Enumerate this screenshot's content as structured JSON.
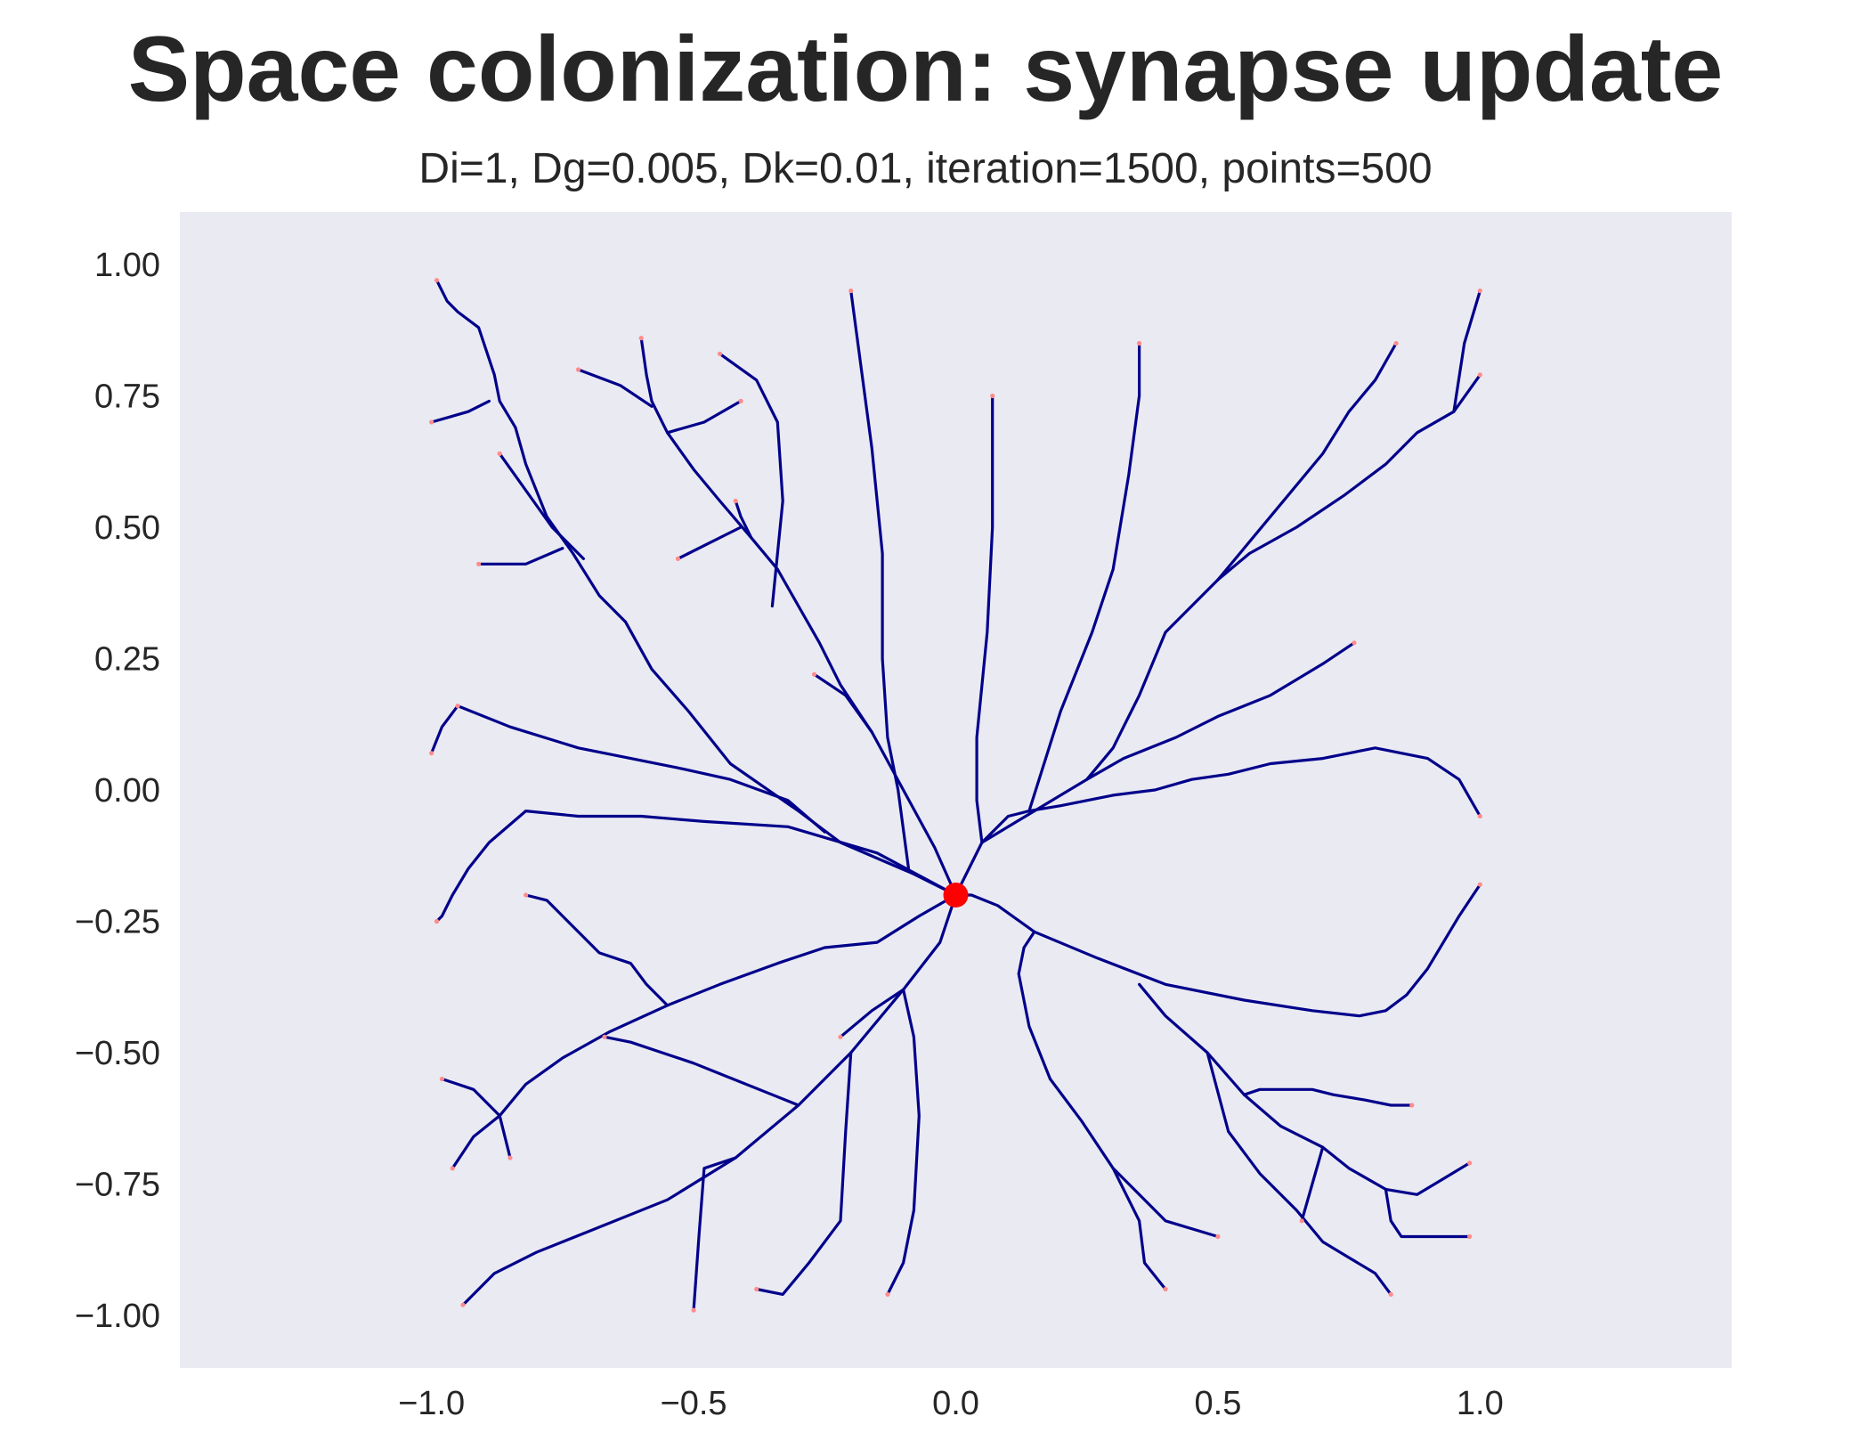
{
  "chart_data": {
    "type": "line",
    "title": "Space colonization: synapse update",
    "subtitle": "Di=1, Dg=0.005, Dk=0.01, iteration=1500, points=500",
    "xlabel": "",
    "ylabel": "",
    "xlim": [
      -1.48,
      1.48
    ],
    "ylim": [
      -1.1,
      1.1
    ],
    "x_ticks": [
      -1.0,
      -0.5,
      0.0,
      0.5,
      1.0
    ],
    "x_tick_labels": [
      "−1.0",
      "−0.5",
      "0.0",
      "0.5",
      "1.0"
    ],
    "y_ticks": [
      1.0,
      0.75,
      0.5,
      0.25,
      0.0,
      -0.25,
      -0.5,
      -0.75,
      -1.0
    ],
    "y_tick_labels": [
      "1.00",
      "0.75",
      "0.50",
      "0.25",
      "0.00",
      "−0.25",
      "−0.50",
      "−0.75",
      "−1.00"
    ],
    "grid": false,
    "colors": {
      "background": "#eaeaf2",
      "branch": "#00008b",
      "root": "#ff0000",
      "points": "#ff8c8c"
    },
    "root": {
      "x": 0.0,
      "y": -0.2
    },
    "series": [
      {
        "x": [
          0.0,
          -0.08,
          -0.22,
          -0.3,
          -0.43,
          -0.51,
          -0.58,
          -0.63,
          -0.68,
          -0.73,
          -0.78,
          -0.82,
          -0.84,
          -0.87,
          -0.88,
          -0.9,
          -0.91,
          -0.95,
          -0.97,
          -0.99
        ],
        "y": [
          -0.2,
          -0.16,
          -0.1,
          -0.04,
          0.05,
          0.15,
          0.23,
          0.32,
          0.37,
          0.45,
          0.52,
          0.62,
          0.69,
          0.74,
          0.79,
          0.85,
          0.88,
          0.91,
          0.93,
          0.97
        ]
      },
      {
        "x": [
          -0.71,
          -0.77,
          -0.87
        ],
        "y": [
          0.44,
          0.5,
          0.64
        ]
      },
      {
        "x": [
          -0.75,
          -0.82,
          -0.91
        ],
        "y": [
          0.46,
          0.43,
          0.43
        ]
      },
      {
        "x": [
          -0.89,
          -0.93,
          -1.0
        ],
        "y": [
          0.74,
          0.72,
          0.7
        ]
      },
      {
        "x": [
          0.0,
          -0.04,
          -0.1,
          -0.16,
          -0.22,
          -0.26,
          -0.3,
          -0.34,
          -0.39,
          -0.45,
          -0.5,
          -0.55,
          -0.58,
          -0.59,
          -0.6
        ],
        "y": [
          -0.2,
          -0.11,
          0.0,
          0.11,
          0.2,
          0.28,
          0.35,
          0.42,
          0.48,
          0.55,
          0.61,
          0.68,
          0.74,
          0.79,
          0.86
        ]
      },
      {
        "x": [
          -0.58,
          -0.64,
          -0.72
        ],
        "y": [
          0.73,
          0.77,
          0.8
        ]
      },
      {
        "x": [
          -0.55,
          -0.48,
          -0.41
        ],
        "y": [
          0.68,
          0.7,
          0.74
        ]
      },
      {
        "x": [
          -0.39,
          -0.41,
          -0.42
        ],
        "y": [
          0.48,
          0.52,
          0.55
        ]
      },
      {
        "x": [
          -0.41,
          -0.47,
          -0.53
        ],
        "y": [
          0.5,
          0.47,
          0.44
        ]
      },
      {
        "x": [
          -0.16,
          -0.21,
          -0.27
        ],
        "y": [
          0.11,
          0.18,
          0.22
        ]
      },
      {
        "x": [
          0.0,
          -0.15,
          -0.32,
          -0.48,
          -0.6,
          -0.72,
          -0.82,
          -0.89,
          -0.93,
          -0.96,
          -0.98,
          -0.99
        ],
        "y": [
          -0.2,
          -0.12,
          -0.07,
          -0.06,
          -0.05,
          -0.05,
          -0.04,
          -0.1,
          -0.15,
          -0.2,
          -0.24,
          -0.25
        ]
      },
      {
        "x": [
          -0.25,
          -0.32,
          -0.43,
          -0.52,
          -0.62,
          -0.72,
          -0.85,
          -0.95
        ],
        "y": [
          -0.08,
          -0.02,
          0.02,
          0.04,
          0.06,
          0.08,
          0.12,
          0.16
        ]
      },
      {
        "x": [
          -0.95,
          -0.98,
          -1.0
        ],
        "y": [
          0.16,
          0.12,
          0.07
        ]
      },
      {
        "x": [
          0.0,
          -0.07,
          -0.15,
          -0.25,
          -0.34,
          -0.45,
          -0.55,
          -0.66,
          -0.75,
          -0.82,
          -0.87,
          -0.92,
          -0.96
        ],
        "y": [
          -0.2,
          -0.24,
          -0.29,
          -0.3,
          -0.33,
          -0.37,
          -0.41,
          -0.46,
          -0.51,
          -0.56,
          -0.62,
          -0.66,
          -0.72
        ]
      },
      {
        "x": [
          -0.55,
          -0.59,
          -0.62,
          -0.68,
          -0.72,
          -0.78,
          -0.82
        ],
        "y": [
          -0.41,
          -0.37,
          -0.33,
          -0.31,
          -0.27,
          -0.21,
          -0.2
        ]
      },
      {
        "x": [
          -0.87,
          -0.92,
          -0.98
        ],
        "y": [
          -0.62,
          -0.57,
          -0.55
        ]
      },
      {
        "x": [
          -0.87,
          -0.85
        ],
        "y": [
          -0.62,
          -0.7
        ]
      },
      {
        "x": [
          0.0,
          -0.03,
          -0.1,
          -0.2,
          -0.3,
          -0.42,
          -0.55,
          -0.7,
          -0.8,
          -0.88,
          -0.94
        ],
        "y": [
          -0.2,
          -0.29,
          -0.38,
          -0.5,
          -0.6,
          -0.7,
          -0.78,
          -0.84,
          -0.88,
          -0.92,
          -0.98
        ]
      },
      {
        "x": [
          -0.3,
          -0.35,
          -0.45,
          -0.5,
          -0.56,
          -0.62,
          -0.67
        ],
        "y": [
          -0.6,
          -0.58,
          -0.54,
          -0.52,
          -0.5,
          -0.48,
          -0.47
        ]
      },
      {
        "x": [
          -0.42,
          -0.48,
          -0.49,
          -0.5
        ],
        "y": [
          -0.7,
          -0.72,
          -0.85,
          -0.99
        ]
      },
      {
        "x": [
          -0.2,
          -0.21,
          -0.22,
          -0.28,
          -0.33,
          -0.38
        ],
        "y": [
          -0.5,
          -0.65,
          -0.82,
          -0.9,
          -0.96,
          -0.95
        ]
      },
      {
        "x": [
          -0.1,
          -0.08,
          -0.07,
          -0.08,
          -0.1,
          -0.13
        ],
        "y": [
          -0.38,
          -0.47,
          -0.62,
          -0.8,
          -0.9,
          -0.96
        ]
      },
      {
        "x": [
          -0.1,
          -0.16,
          -0.22
        ],
        "y": [
          -0.38,
          -0.42,
          -0.47
        ]
      },
      {
        "x": [
          0.0,
          0.03,
          0.08,
          0.15,
          0.27,
          0.4,
          0.55,
          0.68,
          0.77,
          0.82,
          0.86,
          0.9,
          0.96,
          1.0
        ],
        "y": [
          -0.2,
          -0.2,
          -0.22,
          -0.27,
          -0.32,
          -0.37,
          -0.4,
          -0.42,
          -0.43,
          -0.42,
          -0.39,
          -0.34,
          -0.24,
          -0.18
        ]
      },
      {
        "x": [
          0.15,
          0.13,
          0.12,
          0.14,
          0.18,
          0.24,
          0.3,
          0.35,
          0.36,
          0.4
        ],
        "y": [
          -0.27,
          -0.3,
          -0.35,
          -0.45,
          -0.55,
          -0.63,
          -0.72,
          -0.82,
          -0.9,
          -0.95
        ]
      },
      {
        "x": [
          0.35,
          0.4,
          0.48,
          0.55,
          0.62,
          0.7,
          0.75,
          0.82,
          0.88,
          0.93,
          0.98
        ],
        "y": [
          -0.37,
          -0.43,
          -0.5,
          -0.58,
          -0.64,
          -0.68,
          -0.72,
          -0.76,
          -0.77,
          -0.74,
          -0.71
        ]
      },
      {
        "x": [
          0.55,
          0.58,
          0.68,
          0.72,
          0.78,
          0.83,
          0.87
        ],
        "y": [
          -0.58,
          -0.57,
          -0.57,
          -0.58,
          -0.59,
          -0.6,
          -0.6
        ]
      },
      {
        "x": [
          0.7,
          0.68,
          0.66
        ],
        "y": [
          -0.68,
          -0.75,
          -0.82
        ]
      },
      {
        "x": [
          0.82,
          0.83,
          0.85,
          0.98
        ],
        "y": [
          -0.76,
          -0.82,
          -0.85,
          -0.85
        ]
      },
      {
        "x": [
          0.48,
          0.52,
          0.58,
          0.65,
          0.7,
          0.75,
          0.8,
          0.83
        ],
        "y": [
          -0.5,
          -0.65,
          -0.73,
          -0.8,
          -0.86,
          -0.89,
          -0.92,
          -0.96
        ]
      },
      {
        "x": [
          0.3,
          0.4,
          0.5
        ],
        "y": [
          -0.72,
          -0.82,
          -0.85
        ]
      },
      {
        "x": [
          0.0,
          0.05,
          0.1,
          0.14,
          0.2,
          0.3,
          0.38,
          0.45,
          0.52,
          0.6,
          0.7,
          0.8,
          0.9,
          0.96,
          1.0
        ],
        "y": [
          -0.2,
          -0.1,
          -0.05,
          -0.04,
          -0.03,
          -0.01,
          0.0,
          0.02,
          0.03,
          0.05,
          0.06,
          0.08,
          0.06,
          0.02,
          -0.05
        ]
      },
      {
        "x": [
          0.05,
          0.15,
          0.25,
          0.3,
          0.32,
          0.35,
          0.4,
          0.5,
          0.6,
          0.7,
          0.75,
          0.8,
          0.84
        ],
        "y": [
          -0.1,
          -0.04,
          0.02,
          0.08,
          0.12,
          0.18,
          0.3,
          0.4,
          0.52,
          0.64,
          0.72,
          0.78,
          0.85
        ]
      },
      {
        "x": [
          0.5,
          0.56,
          0.65,
          0.74,
          0.82,
          0.88,
          0.95,
          1.0
        ],
        "y": [
          0.4,
          0.45,
          0.5,
          0.56,
          0.62,
          0.68,
          0.72,
          0.79
        ]
      },
      {
        "x": [
          0.95,
          0.97,
          1.0
        ],
        "y": [
          0.72,
          0.85,
          0.95
        ]
      },
      {
        "x": [
          0.25,
          0.32,
          0.42,
          0.5,
          0.6,
          0.7,
          0.76
        ],
        "y": [
          0.02,
          0.06,
          0.1,
          0.14,
          0.18,
          0.24,
          0.28
        ]
      },
      {
        "x": [
          0.05,
          0.04,
          0.04,
          0.06,
          0.07,
          0.07
        ],
        "y": [
          -0.1,
          -0.02,
          0.1,
          0.3,
          0.5,
          0.75
        ]
      },
      {
        "x": [
          0.14,
          0.2,
          0.26,
          0.3,
          0.33,
          0.35,
          0.35
        ],
        "y": [
          -0.04,
          0.15,
          0.3,
          0.42,
          0.6,
          0.75,
          0.85
        ]
      },
      {
        "x": [
          -0.09,
          -0.11,
          -0.13,
          -0.14,
          -0.14,
          -0.16,
          -0.2
        ],
        "y": [
          -0.15,
          0.0,
          0.1,
          0.25,
          0.45,
          0.65,
          0.95
        ]
      },
      {
        "x": [
          -0.35,
          -0.34,
          -0.33,
          -0.34,
          -0.38,
          -0.45
        ],
        "y": [
          0.35,
          0.45,
          0.55,
          0.7,
          0.78,
          0.83
        ]
      }
    ]
  }
}
